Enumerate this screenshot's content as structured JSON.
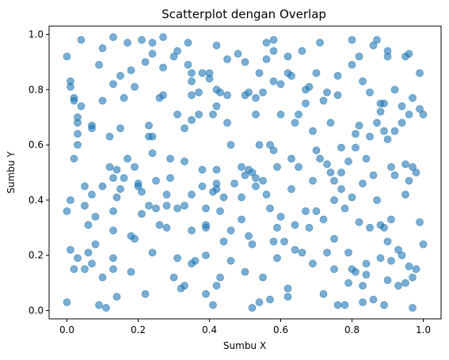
{
  "chart_data": {
    "type": "scatter",
    "title": "Scatterplot dengan Overlap",
    "xlabel": "Sumbu X",
    "ylabel": "Sumbu Y",
    "xlim": [
      -0.05,
      1.05
    ],
    "ylim": [
      -0.03,
      1.03
    ],
    "xticks": [
      "0.0",
      "0.2",
      "0.4",
      "0.6",
      "0.8",
      "1.0"
    ],
    "yticks": [
      "0.0",
      "0.2",
      "0.4",
      "0.6",
      "0.8",
      "1.0"
    ],
    "grid": false,
    "color": "#1f77b4",
    "alpha": 0.6,
    "points": [
      [
        0.0,
        0.36
      ],
      [
        0.0,
        0.92
      ],
      [
        0.0,
        0.03
      ],
      [
        0.01,
        0.83
      ],
      [
        0.01,
        0.81
      ],
      [
        0.02,
        0.77
      ],
      [
        0.02,
        0.76
      ],
      [
        0.03,
        0.68
      ],
      [
        0.03,
        0.7
      ],
      [
        0.02,
        0.55
      ],
      [
        0.03,
        0.64
      ],
      [
        0.04,
        0.98
      ],
      [
        0.03,
        0.19
      ],
      [
        0.01,
        0.22
      ],
      [
        0.02,
        0.15
      ],
      [
        0.01,
        0.4
      ],
      [
        0.03,
        0.6
      ],
      [
        0.04,
        0.74
      ],
      [
        0.05,
        0.45
      ],
      [
        0.05,
        0.38
      ],
      [
        0.05,
        0.15
      ],
      [
        0.06,
        0.21
      ],
      [
        0.06,
        0.31
      ],
      [
        0.07,
        0.42
      ],
      [
        0.07,
        0.66
      ],
      [
        0.07,
        0.67
      ],
      [
        0.08,
        0.24
      ],
      [
        0.08,
        0.34
      ],
      [
        0.07,
        0.17
      ],
      [
        0.09,
        0.89
      ],
      [
        0.09,
        0.02
      ],
      [
        0.1,
        0.95
      ],
      [
        0.1,
        0.76
      ],
      [
        0.1,
        0.45
      ],
      [
        0.1,
        0.12
      ],
      [
        0.11,
        0.01
      ],
      [
        0.12,
        0.63
      ],
      [
        0.12,
        0.52
      ],
      [
        0.13,
        0.99
      ],
      [
        0.13,
        0.82
      ],
      [
        0.13,
        0.48
      ],
      [
        0.13,
        0.36
      ],
      [
        0.13,
        0.29
      ],
      [
        0.13,
        0.19
      ],
      [
        0.13,
        0.15
      ],
      [
        0.14,
        0.05
      ],
      [
        0.14,
        0.51
      ],
      [
        0.14,
        0.41
      ],
      [
        0.15,
        0.85
      ],
      [
        0.15,
        0.44
      ],
      [
        0.15,
        0.66
      ],
      [
        0.16,
        0.77
      ],
      [
        0.16,
        0.48
      ],
      [
        0.17,
        0.55
      ],
      [
        0.17,
        0.97
      ],
      [
        0.18,
        0.87
      ],
      [
        0.18,
        0.27
      ],
      [
        0.18,
        0.14
      ],
      [
        0.19,
        0.52
      ],
      [
        0.19,
        0.26
      ],
      [
        0.19,
        0.81
      ],
      [
        0.2,
        0.46
      ],
      [
        0.2,
        0.45
      ],
      [
        0.21,
        0.98
      ],
      [
        0.21,
        0.43
      ],
      [
        0.21,
        0.35
      ],
      [
        0.22,
        0.9
      ],
      [
        0.22,
        0.06
      ],
      [
        0.23,
        0.63
      ],
      [
        0.23,
        0.38
      ],
      [
        0.23,
        0.67
      ],
      [
        0.24,
        0.63
      ],
      [
        0.24,
        0.93
      ],
      [
        0.24,
        0.97
      ],
      [
        0.24,
        0.57
      ],
      [
        0.24,
        0.21
      ],
      [
        0.25,
        0.47
      ],
      [
        0.25,
        0.37
      ],
      [
        0.26,
        0.31
      ],
      [
        0.26,
        0.77
      ],
      [
        0.27,
        0.88
      ],
      [
        0.27,
        0.99
      ],
      [
        0.27,
        0.78
      ],
      [
        0.28,
        0.38
      ],
      [
        0.28,
        0.3
      ],
      [
        0.28,
        0.42
      ],
      [
        0.29,
        0.55
      ],
      [
        0.29,
        0.48
      ],
      [
        0.3,
        0.12
      ],
      [
        0.3,
        0.92
      ],
      [
        0.31,
        0.94
      ],
      [
        0.31,
        0.71
      ],
      [
        0.31,
        0.37
      ],
      [
        0.31,
        0.19
      ],
      [
        0.32,
        0.08
      ],
      [
        0.33,
        0.38
      ],
      [
        0.33,
        0.54
      ],
      [
        0.33,
        0.66
      ],
      [
        0.33,
        0.09
      ],
      [
        0.34,
        0.97
      ],
      [
        0.34,
        0.89
      ],
      [
        0.35,
        0.86
      ],
      [
        0.35,
        0.83
      ],
      [
        0.35,
        0.78
      ],
      [
        0.35,
        0.69
      ],
      [
        0.35,
        0.42
      ],
      [
        0.35,
        0.17
      ],
      [
        0.35,
        0.29
      ],
      [
        0.36,
        0.18
      ],
      [
        0.37,
        0.71
      ],
      [
        0.37,
        0.79
      ],
      [
        0.38,
        0.86
      ],
      [
        0.38,
        0.51
      ],
      [
        0.38,
        0.45
      ],
      [
        0.39,
        0.37
      ],
      [
        0.39,
        0.31
      ],
      [
        0.39,
        0.3
      ],
      [
        0.39,
        0.2
      ],
      [
        0.39,
        0.06
      ],
      [
        0.4,
        0.86
      ],
      [
        0.4,
        0.84
      ],
      [
        0.41,
        0.43
      ],
      [
        0.41,
        0.71
      ],
      [
        0.41,
        0.02
      ],
      [
        0.42,
        0.96
      ],
      [
        0.42,
        0.8
      ],
      [
        0.42,
        0.74
      ],
      [
        0.42,
        0.51
      ],
      [
        0.42,
        0.46
      ],
      [
        0.42,
        0.44
      ],
      [
        0.42,
        0.09
      ],
      [
        0.43,
        0.12
      ],
      [
        0.43,
        0.79
      ],
      [
        0.43,
        0.36
      ],
      [
        0.44,
        0.25
      ],
      [
        0.44,
        0.41
      ],
      [
        0.45,
        0.91
      ],
      [
        0.45,
        0.78
      ],
      [
        0.45,
        0.68
      ],
      [
        0.46,
        0.29
      ],
      [
        0.46,
        0.18
      ],
      [
        0.46,
        0.6
      ],
      [
        0.47,
        0.46
      ],
      [
        0.48,
        0.93
      ],
      [
        0.49,
        0.52
      ],
      [
        0.49,
        0.41
      ],
      [
        0.49,
        0.33
      ],
      [
        0.5,
        0.9
      ],
      [
        0.5,
        0.78
      ],
      [
        0.5,
        0.49
      ],
      [
        0.5,
        0.14
      ],
      [
        0.51,
        0.79
      ],
      [
        0.51,
        0.51
      ],
      [
        0.51,
        0.27
      ],
      [
        0.52,
        0.24
      ],
      [
        0.52,
        0.01
      ],
      [
        0.52,
        0.5
      ],
      [
        0.53,
        0.71
      ],
      [
        0.53,
        0.48
      ],
      [
        0.53,
        0.77
      ],
      [
        0.53,
        0.45
      ],
      [
        0.54,
        0.86
      ],
      [
        0.54,
        0.6
      ],
      [
        0.54,
        0.03
      ],
      [
        0.55,
        0.79
      ],
      [
        0.55,
        0.47
      ],
      [
        0.55,
        0.12
      ],
      [
        0.56,
        0.97
      ],
      [
        0.56,
        0.91
      ],
      [
        0.56,
        0.42
      ],
      [
        0.57,
        0.6
      ],
      [
        0.57,
        0.37
      ],
      [
        0.57,
        0.04
      ],
      [
        0.58,
        0.98
      ],
      [
        0.58,
        0.94
      ],
      [
        0.58,
        0.83
      ],
      [
        0.58,
        0.58
      ],
      [
        0.58,
        0.25
      ],
      [
        0.59,
        0.52
      ],
      [
        0.59,
        0.3
      ],
      [
        0.59,
        0.19
      ],
      [
        0.6,
        0.82
      ],
      [
        0.6,
        0.71
      ],
      [
        0.6,
        0.34
      ],
      [
        0.61,
        0.25
      ],
      [
        0.62,
        0.92
      ],
      [
        0.62,
        0.86
      ],
      [
        0.62,
        0.08
      ],
      [
        0.62,
        0.05
      ],
      [
        0.63,
        0.85
      ],
      [
        0.63,
        0.55
      ],
      [
        0.63,
        0.44
      ],
      [
        0.64,
        0.68
      ],
      [
        0.64,
        0.31
      ],
      [
        0.64,
        0.22
      ],
      [
        0.65,
        0.71
      ],
      [
        0.65,
        0.52
      ],
      [
        0.66,
        0.94
      ],
      [
        0.66,
        0.21
      ],
      [
        0.67,
        0.75
      ],
      [
        0.67,
        0.8
      ],
      [
        0.67,
        0.36
      ],
      [
        0.68,
        0.81
      ],
      [
        0.68,
        0.3
      ],
      [
        0.69,
        0.65
      ],
      [
        0.69,
        0.47
      ],
      [
        0.69,
        0.17
      ],
      [
        0.7,
        0.86
      ],
      [
        0.7,
        0.58
      ],
      [
        0.7,
        0.36
      ],
      [
        0.71,
        0.97
      ],
      [
        0.71,
        0.55
      ],
      [
        0.72,
        0.76
      ],
      [
        0.72,
        0.33
      ],
      [
        0.72,
        0.06
      ],
      [
        0.73,
        0.53
      ],
      [
        0.73,
        0.79
      ],
      [
        0.73,
        0.21
      ],
      [
        0.74,
        0.68
      ],
      [
        0.74,
        0.5
      ],
      [
        0.75,
        0.47
      ],
      [
        0.75,
        0.4
      ],
      [
        0.75,
        0.26
      ],
      [
        0.75,
        0.15
      ],
      [
        0.76,
        0.02
      ],
      [
        0.76,
        0.85
      ],
      [
        0.76,
        0.78
      ],
      [
        0.77,
        0.59
      ],
      [
        0.77,
        0.5
      ],
      [
        0.77,
        0.44
      ],
      [
        0.78,
        0.37
      ],
      [
        0.78,
        0.02
      ],
      [
        0.79,
        0.54
      ],
      [
        0.79,
        0.21
      ],
      [
        0.79,
        0.1
      ],
      [
        0.8,
        0.98
      ],
      [
        0.8,
        0.89
      ],
      [
        0.8,
        0.41
      ],
      [
        0.8,
        0.15
      ],
      [
        0.81,
        0.64
      ],
      [
        0.81,
        0.59
      ],
      [
        0.81,
        0.14
      ],
      [
        0.82,
        0.92
      ],
      [
        0.82,
        0.67
      ],
      [
        0.82,
        0.32
      ],
      [
        0.83,
        0.46
      ],
      [
        0.83,
        0.83
      ],
      [
        0.83,
        0.09
      ],
      [
        0.83,
        0.03
      ],
      [
        0.84,
        0.55
      ],
      [
        0.84,
        0.17
      ],
      [
        0.84,
        0.13
      ],
      [
        0.85,
        0.63
      ],
      [
        0.85,
        0.79
      ],
      [
        0.85,
        0.3
      ],
      [
        0.86,
        0.96
      ],
      [
        0.86,
        0.49
      ],
      [
        0.86,
        0.04
      ],
      [
        0.87,
        0.98
      ],
      [
        0.87,
        0.68
      ],
      [
        0.87,
        0.4
      ],
      [
        0.88,
        0.31
      ],
      [
        0.88,
        0.19
      ],
      [
        0.88,
        0.72
      ],
      [
        0.88,
        0.75
      ],
      [
        0.89,
        0.75
      ],
      [
        0.89,
        0.65
      ],
      [
        0.89,
        0.3
      ],
      [
        0.89,
        0.02
      ],
      [
        0.9,
        0.92
      ],
      [
        0.9,
        0.94
      ],
      [
        0.9,
        0.62
      ],
      [
        0.9,
        0.25
      ],
      [
        0.9,
        0.11
      ],
      [
        0.91,
        0.52
      ],
      [
        0.91,
        0.33
      ],
      [
        0.91,
        0.18
      ],
      [
        0.92,
        0.8
      ],
      [
        0.92,
        0.65
      ],
      [
        0.92,
        0.49
      ],
      [
        0.93,
        0.22
      ],
      [
        0.93,
        0.09
      ],
      [
        0.94,
        0.74
      ],
      [
        0.94,
        0.68
      ],
      [
        0.94,
        0.2
      ],
      [
        0.95,
        0.92
      ],
      [
        0.95,
        0.53
      ],
      [
        0.95,
        0.42
      ],
      [
        0.95,
        0.1
      ],
      [
        0.96,
        0.93
      ],
      [
        0.96,
        0.71
      ],
      [
        0.96,
        0.47
      ],
      [
        0.96,
        0.16
      ],
      [
        0.97,
        0.52
      ],
      [
        0.97,
        0.01
      ],
      [
        0.97,
        0.77
      ],
      [
        0.97,
        0.12
      ],
      [
        0.98,
        0.5
      ],
      [
        0.98,
        0.15
      ],
      [
        0.99,
        0.86
      ],
      [
        0.99,
        0.32
      ],
      [
        0.99,
        0.73
      ],
      [
        1.0,
        0.71
      ],
      [
        1.0,
        0.24
      ]
    ]
  }
}
